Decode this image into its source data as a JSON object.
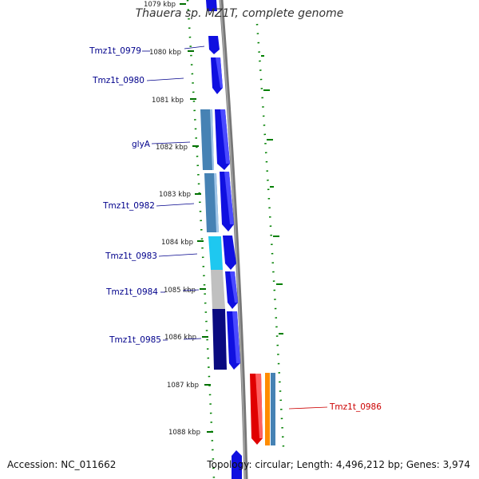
{
  "title": "Thauera sp. MZ1T, complete genome",
  "footer": {
    "accession": "Accession: NC_011662",
    "topology": "Topology: circular; Length: 4,496,212 bp; Genes: 3,974"
  },
  "kbp_labels": [
    "1079 kbp",
    "1080 kbp",
    "1081 kbp",
    "1082 kbp",
    "1083 kbp",
    "1084 kbp",
    "1085 kbp",
    "1086 kbp",
    "1087 kbp",
    "1088 kbp"
  ],
  "genes": [
    {
      "id": "0979",
      "label": "Tmz1t_0979",
      "color": "#00008b"
    },
    {
      "id": "0980",
      "label": "Tmz1t_0980",
      "color": "#00008b"
    },
    {
      "id": "glya",
      "label": "glyA",
      "color": "#00008b"
    },
    {
      "id": "0982",
      "label": "Tmz1t_0982",
      "color": "#00008b"
    },
    {
      "id": "0983",
      "label": "Tmz1t_0983",
      "color": "#00008b"
    },
    {
      "id": "0984",
      "label": "Tmz1t_0984",
      "color": "#00008b"
    },
    {
      "id": "0985",
      "label": "Tmz1t_0985",
      "color": "#00008b"
    },
    {
      "id": "0986",
      "label": "Tmz1t_0986",
      "color": "#cc0000"
    }
  ],
  "colors": {
    "cds_strand": "#1010e0",
    "cog_steel": "#4682b4",
    "cog_light": "#1ec8f0",
    "cog_gray": "#c0c0c0",
    "cog_navy": "#0a0a80",
    "cog_red": "#e00000",
    "cog_orange": "#ff8c00",
    "backbone": "#808080",
    "ticks": "#007000"
  }
}
